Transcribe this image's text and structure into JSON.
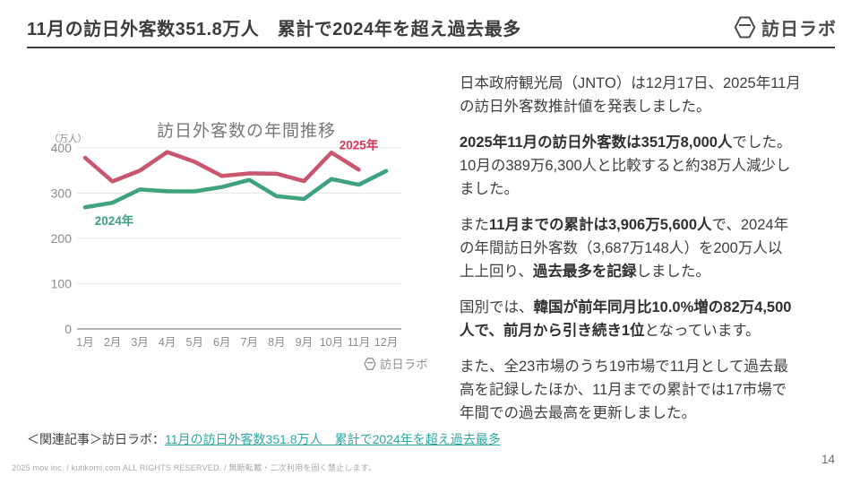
{
  "header": {
    "title": "11月の訪日外客数351.8万人　累計で2024年を超え過去最多",
    "brand": "訪日ラボ"
  },
  "chart_data": {
    "type": "line",
    "title": "訪日外客数の年間推移",
    "unit_label": "（万人）",
    "categories": [
      "1月",
      "2月",
      "3月",
      "4月",
      "5月",
      "6月",
      "7月",
      "8月",
      "9月",
      "10月",
      "11月",
      "12月"
    ],
    "series": [
      {
        "name": "2024年",
        "color": "#3ea27c",
        "label_color": "#3ea27c",
        "values": [
          268.8,
          278.8,
          308.2,
          304.3,
          304.0,
          313.5,
          329.3,
          293.3,
          287.2,
          331.2,
          318.7,
          348.9
        ]
      },
      {
        "name": "2025年",
        "color": "#c9566f",
        "label_color": "#dc3558",
        "values": [
          378.1,
          325.9,
          349.7,
          390.8,
          369.3,
          337.9,
          343.7,
          342.9,
          326.7,
          389.6,
          351.8
        ]
      }
    ],
    "ylim": [
      0,
      400
    ],
    "yticks": [
      0,
      100,
      200,
      300,
      400
    ],
    "grid": "horizontal",
    "legend_position": "inline-labels",
    "watermark": "訪日ラボ"
  },
  "article": {
    "paragraphs": [
      {
        "runs": [
          {
            "text": "日本政府観光局（JNTO）は12月17日、2025年11月\nの訪日外客数推計値を発表しました。",
            "bold": false
          }
        ]
      },
      {
        "runs": [
          {
            "text": "2025年11月の訪日外客数は351万8,000人",
            "bold": true
          },
          {
            "text": "でした。\n10月の389万6,300人と比較すると約38万人減少し\nました。",
            "bold": false
          }
        ]
      },
      {
        "runs": [
          {
            "text": "また",
            "bold": false
          },
          {
            "text": "11月までの累計は3,906万5,600人",
            "bold": true
          },
          {
            "text": "で、2024年\nの年間訪日外客数（3,687万148人）を200万人以\n上上回り、",
            "bold": false
          },
          {
            "text": "過去最多を記録",
            "bold": true
          },
          {
            "text": "しました。",
            "bold": false
          }
        ]
      },
      {
        "runs": [
          {
            "text": "国別では、",
            "bold": false
          },
          {
            "text": "韓国が前年同月比10.0%増の82万4,500\n人で、前月から引き続き1位",
            "bold": true
          },
          {
            "text": "となっています。",
            "bold": false
          }
        ]
      },
      {
        "runs": [
          {
            "text": "また、全23市場のうち19市場で11月として過去最\n高を記録したほか、11月までの累計では17市場で\n年間での過去最高を更新しました。",
            "bold": false
          }
        ]
      }
    ]
  },
  "related": {
    "prefix": "＜関連記事＞訪日ラボ：",
    "link_text": "11月の訪日外客数351.8万人　累計で2024年を超え過去最多"
  },
  "footer": {
    "copyright": "2025 mov inc. / kutikomi.com ALL RIGHTS RESERVED. / 無断転載・二次利用を固く禁止します。",
    "page_number": "14"
  },
  "colors": {
    "accent_red": "#c9566f",
    "accent_red_label": "#dc3558",
    "accent_green": "#3ea27c",
    "link_teal": "#2ca9a4",
    "grid_gray": "#e7e7e7",
    "axis_gray": "#9b9b9b",
    "tick_label_gray": "#8c8c8c",
    "chart_title_gray": "#787878"
  }
}
